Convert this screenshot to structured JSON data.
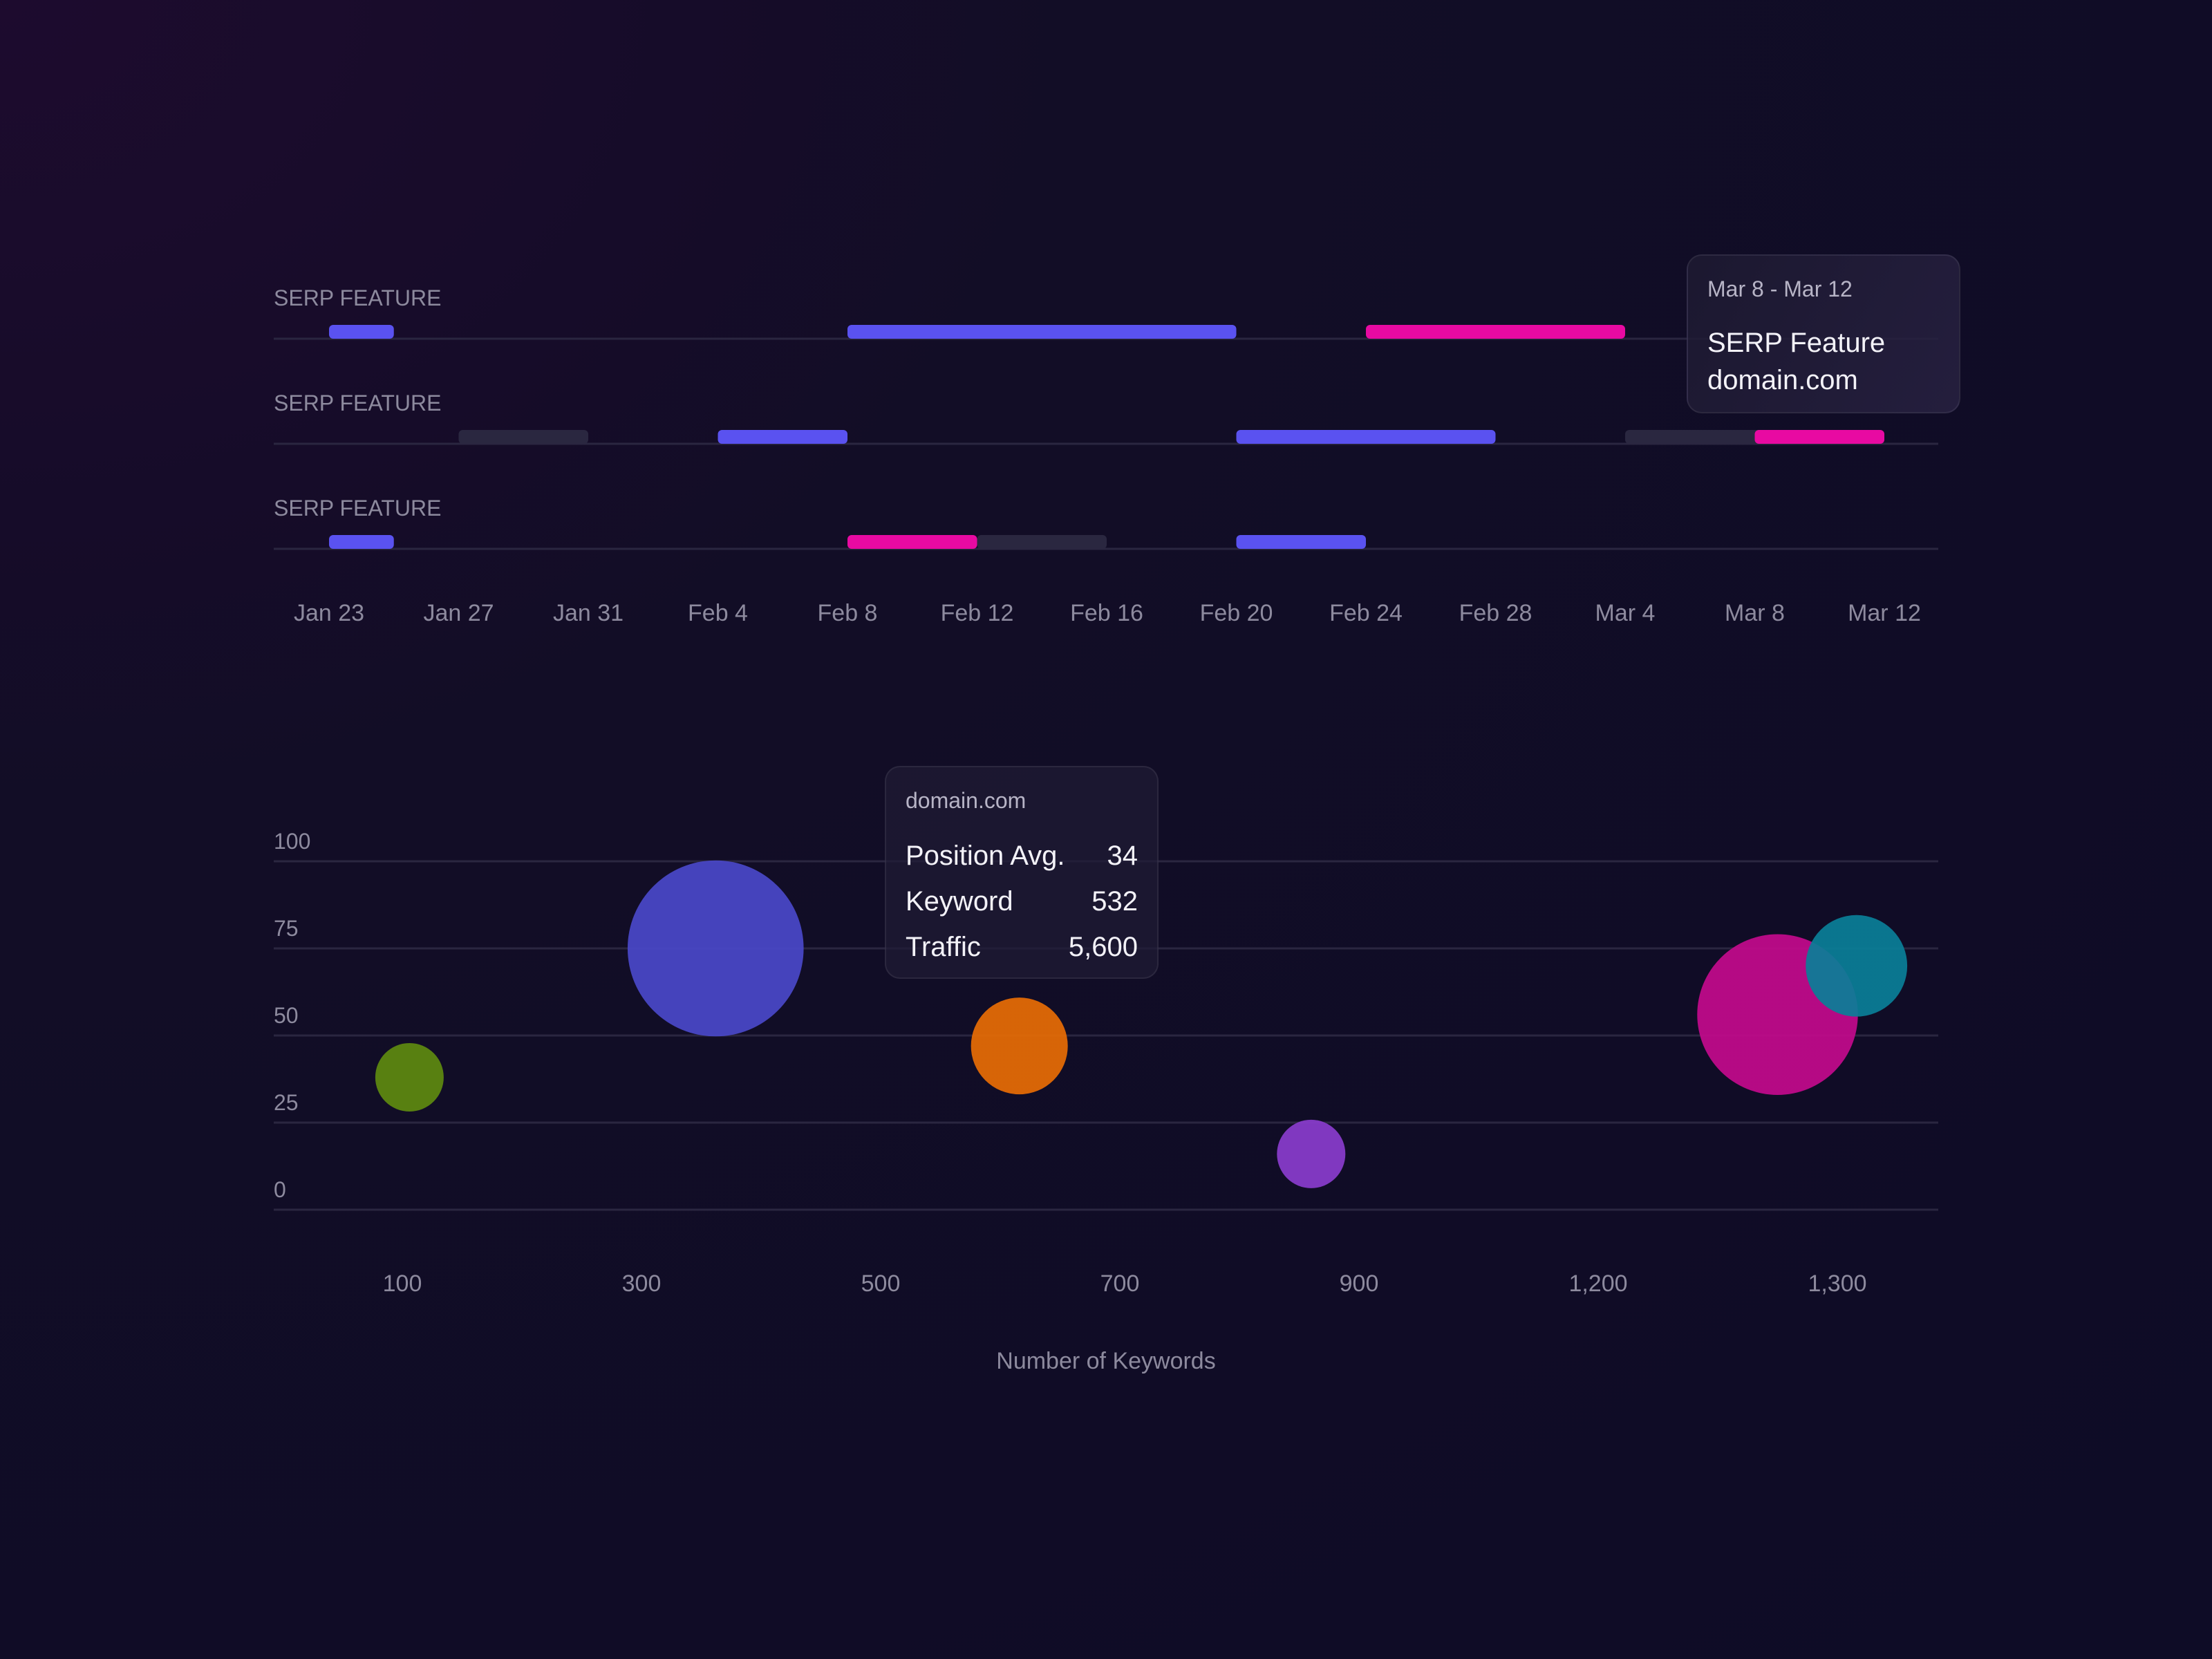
{
  "chart_data": [
    {
      "type": "timeline",
      "rows": [
        {
          "label": "SERP FEATURE",
          "segments": [
            {
              "start": "Jan 23",
              "end": "Jan 25",
              "color": "#5a52f0"
            },
            {
              "start": "Feb 8",
              "end": "Feb 20",
              "color": "#5a52f0"
            },
            {
              "start": "Feb 24",
              "end": "Mar 4",
              "color": "#e80aa2"
            }
          ]
        },
        {
          "label": "SERP FEATURE",
          "segments": [
            {
              "start": "Jan 27",
              "end": "Jan 31",
              "color": "#2a2740"
            },
            {
              "start": "Feb 4",
              "end": "Feb 8",
              "color": "#5a52f0"
            },
            {
              "start": "Feb 20",
              "end": "Feb 28",
              "color": "#5a52f0"
            },
            {
              "start": "Mar 4",
              "end": "Mar 12",
              "color": "#2a2740"
            },
            {
              "start": "Mar 8",
              "end": "Mar 12",
              "color": "#e80aa2"
            }
          ]
        },
        {
          "label": "SERP FEATURE",
          "segments": [
            {
              "start": "Jan 23",
              "end": "Jan 25",
              "color": "#5a52f0"
            },
            {
              "start": "Feb 8",
              "end": "Feb 12",
              "color": "#e80aa2"
            },
            {
              "start": "Feb 12",
              "end": "Feb 16",
              "color": "#2a2740"
            },
            {
              "start": "Feb 20",
              "end": "Feb 24",
              "color": "#5a52f0"
            }
          ]
        }
      ],
      "x_ticks": [
        "Jan 23",
        "Jan 27",
        "Jan 31",
        "Feb 4",
        "Feb 8",
        "Feb 12",
        "Feb 16",
        "Feb 20",
        "Feb 24",
        "Feb 28",
        "Mar 4",
        "Mar 8",
        "Mar 12"
      ],
      "tooltip": {
        "date": "Mar 8 - Mar 12",
        "lines": [
          "SERP Feature",
          "domain.com"
        ]
      }
    },
    {
      "type": "scatter",
      "xlabel": "Number of Keywords",
      "x_ticks": [
        "100",
        "300",
        "500",
        "700",
        "900",
        "1,200",
        "1,300"
      ],
      "y_ticks": [
        100,
        75,
        50,
        25,
        0
      ],
      "ylim": [
        0,
        100
      ],
      "points": [
        {
          "x_index": 0.03,
          "y": 38,
          "size": 1,
          "color": "#5e8a0f"
        },
        {
          "x_index": 1.31,
          "y": 75,
          "size": 6,
          "color": "#4a48c9"
        },
        {
          "x_index": 2.58,
          "y": 47,
          "size": 2,
          "color": "#e86c04"
        },
        {
          "x_index": 3.8,
          "y": 16,
          "size": 1,
          "color": "#8a3ccd"
        },
        {
          "x_index": 5.75,
          "y": 56,
          "size": 5,
          "color": "#c30a8c"
        },
        {
          "x_index": 6.08,
          "y": 70,
          "size": 2.2,
          "color": "#0a7f98"
        }
      ],
      "tooltip": {
        "title": "domain.com",
        "rows": [
          {
            "label": "Position Avg.",
            "value": "34"
          },
          {
            "label": "Keyword",
            "value": "532"
          },
          {
            "label": "Traffic",
            "value": "5,600"
          }
        ]
      }
    }
  ]
}
